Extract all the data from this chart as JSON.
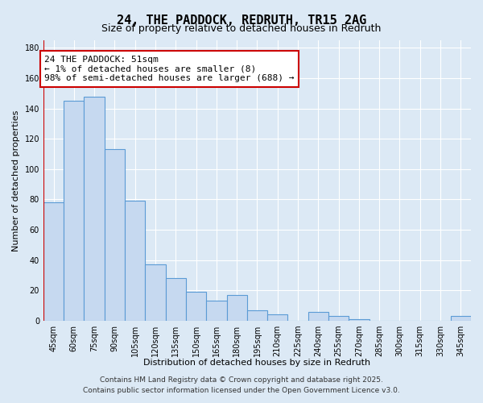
{
  "title": "24, THE PADDOCK, REDRUTH, TR15 2AG",
  "subtitle": "Size of property relative to detached houses in Redruth",
  "xlabel": "Distribution of detached houses by size in Redruth",
  "ylabel": "Number of detached properties",
  "bar_labels": [
    "45sqm",
    "60sqm",
    "75sqm",
    "90sqm",
    "105sqm",
    "120sqm",
    "135sqm",
    "150sqm",
    "165sqm",
    "180sqm",
    "195sqm",
    "210sqm",
    "225sqm",
    "240sqm",
    "255sqm",
    "270sqm",
    "285sqm",
    "300sqm",
    "315sqm",
    "330sqm",
    "345sqm"
  ],
  "bar_values": [
    78,
    145,
    148,
    113,
    79,
    37,
    28,
    19,
    13,
    17,
    7,
    4,
    0,
    6,
    3,
    1,
    0,
    0,
    0,
    0,
    3
  ],
  "bar_color": "#c6d9f0",
  "bar_edge_color": "#5b9bd5",
  "highlight_color": "#cc0000",
  "annotation_title": "24 THE PADDOCK: 51sqm",
  "annotation_line1": "← 1% of detached houses are smaller (8)",
  "annotation_line2": "98% of semi-detached houses are larger (688) →",
  "annotation_box_color": "#ffffff",
  "annotation_box_edge": "#cc0000",
  "ylim": [
    0,
    185
  ],
  "yticks": [
    0,
    20,
    40,
    60,
    80,
    100,
    120,
    140,
    160,
    180
  ],
  "footer_line1": "Contains HM Land Registry data © Crown copyright and database right 2025.",
  "footer_line2": "Contains public sector information licensed under the Open Government Licence v3.0.",
  "bg_color": "#dce9f5",
  "plot_bg_color": "#dce9f5",
  "title_fontsize": 11,
  "subtitle_fontsize": 9,
  "axis_label_fontsize": 8,
  "tick_fontsize": 7,
  "annotation_fontsize": 8,
  "footer_fontsize": 6.5
}
